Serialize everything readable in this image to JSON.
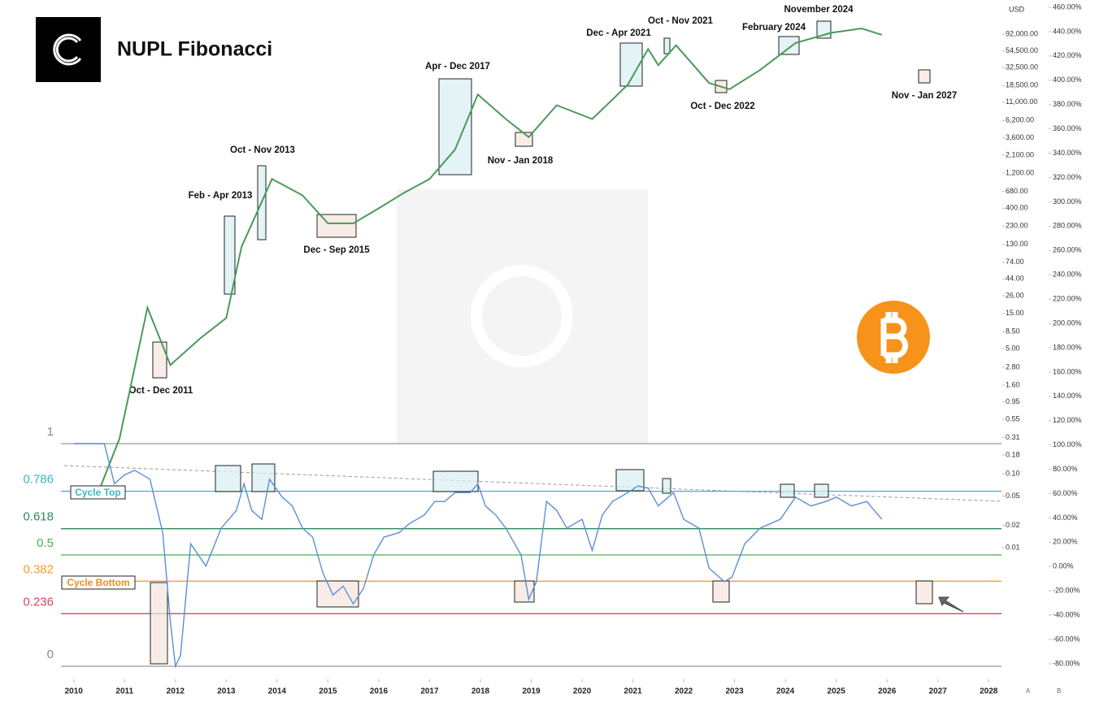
{
  "header": {
    "title": "NUPL Fibonacci"
  },
  "footer": [
    "A",
    "B"
  ],
  "chart_data": [
    {
      "type": "line",
      "yscale": "log",
      "y_label": "USD",
      "x": [
        2010.5,
        2010.9,
        2011.45,
        2011.9,
        2012.5,
        2013.0,
        2013.3,
        2013.9,
        2014.5,
        2015.0,
        2015.5,
        2016.0,
        2016.5,
        2017.0,
        2017.5,
        2017.95,
        2018.5,
        2018.95,
        2019.5,
        2020.2,
        2020.9,
        2021.3,
        2021.5,
        2021.85,
        2022.5,
        2022.9,
        2023.5,
        2024.2,
        2024.9,
        2025.5,
        2025.9
      ],
      "series": [
        {
          "color": "#4a9a5a",
          "values": [
            0.06,
            0.3,
            18,
            3,
            7,
            13,
            120,
            1000,
            600,
            250,
            250,
            400,
            650,
            1000,
            2500,
            14000,
            6500,
            3700,
            10000,
            6500,
            19000,
            58000,
            35000,
            65000,
            20000,
            16500,
            30000,
            70000,
            96000,
            110000,
            90000
          ]
        }
      ],
      "xlim": [
        2009.7,
        2028.3
      ],
      "ylim": [
        0.000265,
        213000
      ],
      "yticks": [
        {
          "value": 92000,
          "label": "92,000.00"
        },
        {
          "value": 54500,
          "label": "54,500.00"
        },
        {
          "value": 32500,
          "label": "32,500.00"
        },
        {
          "value": 18500,
          "label": "18,500.00"
        },
        {
          "value": 11000,
          "label": "11,000.00"
        },
        {
          "value": 6200,
          "label": "6,200.00"
        },
        {
          "value": 3600,
          "label": "3,600.00"
        },
        {
          "value": 2100,
          "label": "2,100.00"
        },
        {
          "value": 1200,
          "label": "1,200.00"
        },
        {
          "value": 680,
          "label": "680.00"
        },
        {
          "value": 400,
          "label": "400.00"
        },
        {
          "value": 230,
          "label": "230.00"
        },
        {
          "value": 130,
          "label": "130.00"
        },
        {
          "value": 74,
          "label": "74.00"
        },
        {
          "value": 44,
          "label": "44.00"
        },
        {
          "value": 26,
          "label": "26.00"
        },
        {
          "value": 15,
          "label": "15.00"
        },
        {
          "value": 8.5,
          "label": "8.50"
        },
        {
          "value": 5,
          "label": "5.00"
        },
        {
          "value": 2.8,
          "label": "2.80"
        },
        {
          "value": 1.6,
          "label": "1.60"
        },
        {
          "value": 0.95,
          "label": "0.95"
        },
        {
          "value": 0.55,
          "label": "0.55"
        },
        {
          "value": 0.31,
          "label": "0.31"
        },
        {
          "value": 0.18,
          "label": "0.18"
        },
        {
          "value": 0.1,
          "label": "0.10"
        },
        {
          "value": 0.05,
          "label": "0.05"
        },
        {
          "value": 0.02,
          "label": "0.02"
        },
        {
          "value": 0.01,
          "label": "0.01"
        }
      ],
      "y2lim": [
        -80,
        460
      ],
      "y2ticks": [
        {
          "value": 460,
          "label": "460.00%"
        },
        {
          "value": 440,
          "label": "440.00%"
        },
        {
          "value": 420,
          "label": "420.00%"
        },
        {
          "value": 400,
          "label": "400.00%"
        },
        {
          "value": 380,
          "label": "380.00%"
        },
        {
          "value": 360,
          "label": "360.00%"
        },
        {
          "value": 340,
          "label": "340.00%"
        },
        {
          "value": 320,
          "label": "320.00%"
        },
        {
          "value": 300,
          "label": "300.00%"
        },
        {
          "value": 280,
          "label": "280.00%"
        },
        {
          "value": 260,
          "label": "260.00%"
        },
        {
          "value": 240,
          "label": "240.00%"
        },
        {
          "value": 220,
          "label": "220.00%"
        },
        {
          "value": 200,
          "label": "200.00%"
        },
        {
          "value": 180,
          "label": "180.00%"
        },
        {
          "value": 160,
          "label": "160.00%"
        },
        {
          "value": 140,
          "label": "140.00%"
        },
        {
          "value": 120,
          "label": "120.00%"
        },
        {
          "value": 100,
          "label": "100.00%"
        },
        {
          "value": 80,
          "label": "80.00%"
        },
        {
          "value": 60,
          "label": "60.00%"
        },
        {
          "value": 40,
          "label": "40.00%"
        },
        {
          "value": 20,
          "label": "20.00%"
        },
        {
          "value": 0,
          "label": "0.00%"
        },
        {
          "value": -20,
          "label": "-20.00%"
        },
        {
          "value": -40,
          "label": "-40.00%"
        },
        {
          "value": -60,
          "label": "-60.00%"
        },
        {
          "value": -80,
          "label": "-80.00%"
        }
      ],
      "annotations": [
        {
          "label": "Oct - Dec 2011",
          "color": "#f3e6dc"
        },
        {
          "label": "Feb - Apr 2013",
          "color": "#d8eef2"
        },
        {
          "label": "Oct - Nov 2013",
          "color": "#d8eef2"
        },
        {
          "label": "Dec - Sep 2015",
          "color": "#f3e6dc"
        },
        {
          "label": "Apr - Dec 2017",
          "color": "#d8eef2"
        },
        {
          "label": "Nov - Jan 2018",
          "color": "#f3e6dc"
        },
        {
          "label": "Dec - Apr 2021",
          "color": "#d8eef2"
        },
        {
          "label": "Oct - Nov 2021",
          "color": "#d8eef2"
        },
        {
          "label": "Oct - Dec 2022",
          "color": "#f3e6dc"
        },
        {
          "label": "February 2024",
          "color": "#d8eef2"
        },
        {
          "label": "November 2024",
          "color": "#d8eef2"
        },
        {
          "label": "Nov - Jan 2027",
          "color": "#f3e6dc"
        }
      ]
    },
    {
      "type": "line",
      "x": [
        2010.0,
        2010.6,
        2010.8,
        2011.0,
        2011.2,
        2011.5,
        2011.75,
        2011.9,
        2012.0,
        2012.1,
        2012.3,
        2012.6,
        2012.9,
        2013.2,
        2013.35,
        2013.5,
        2013.7,
        2013.85,
        2014.1,
        2014.3,
        2014.5,
        2014.7,
        2014.9,
        2015.1,
        2015.3,
        2015.5,
        2015.7,
        2015.9,
        2016.1,
        2016.4,
        2016.6,
        2016.9,
        2017.1,
        2017.3,
        2017.5,
        2017.8,
        2017.95,
        2018.1,
        2018.3,
        2018.5,
        2018.8,
        2018.95,
        2019.1,
        2019.3,
        2019.5,
        2019.7,
        2020.0,
        2020.2,
        2020.4,
        2020.6,
        2020.9,
        2021.1,
        2021.3,
        2021.5,
        2021.8,
        2022.0,
        2022.3,
        2022.5,
        2022.8,
        2022.95,
        2023.2,
        2023.5,
        2023.9,
        2024.2,
        2024.5,
        2024.8,
        2025.0,
        2025.3,
        2025.6,
        2025.9
      ],
      "series": [
        {
          "color": "#5b8fd6",
          "values": [
            1,
            1,
            0.82,
            0.86,
            0.88,
            0.84,
            0.6,
            0.2,
            0,
            0.05,
            0.55,
            0.45,
            0.62,
            0.7,
            0.82,
            0.7,
            0.66,
            0.84,
            0.76,
            0.72,
            0.62,
            0.58,
            0.42,
            0.32,
            0.36,
            0.28,
            0.35,
            0.5,
            0.58,
            0.6,
            0.64,
            0.68,
            0.74,
            0.74,
            0.78,
            0.78,
            0.82,
            0.72,
            0.68,
            0.62,
            0.5,
            0.3,
            0.38,
            0.74,
            0.7,
            0.62,
            0.66,
            0.52,
            0.68,
            0.74,
            0.78,
            0.81,
            0.8,
            0.72,
            0.78,
            0.66,
            0.62,
            0.44,
            0.38,
            0.4,
            0.55,
            0.62,
            0.66,
            0.76,
            0.72,
            0.74,
            0.76,
            0.72,
            0.74,
            0.66
          ]
        }
      ],
      "xlim": [
        2009.7,
        2028.3
      ],
      "xticks": [
        2010,
        2011,
        2012,
        2013,
        2014,
        2015,
        2016,
        2017,
        2018,
        2019,
        2020,
        2021,
        2022,
        2023,
        2024,
        2025,
        2026,
        2027,
        2028
      ],
      "ylim": [
        0,
        1
      ],
      "yticks": [
        0,
        0.236,
        0.382,
        0.5,
        0.618,
        0.786,
        1
      ],
      "ytick_colors": [
        "#888888",
        "#d9455f",
        "#f0a030",
        "#4caf50",
        "#2e8b57",
        "#3bb6c4",
        "#888888"
      ],
      "annotations": [
        {
          "label": "Cycle Top",
          "color": "#3bb6c4"
        },
        {
          "label": "Cycle Bottom",
          "color": "#f08a20"
        }
      ]
    }
  ]
}
